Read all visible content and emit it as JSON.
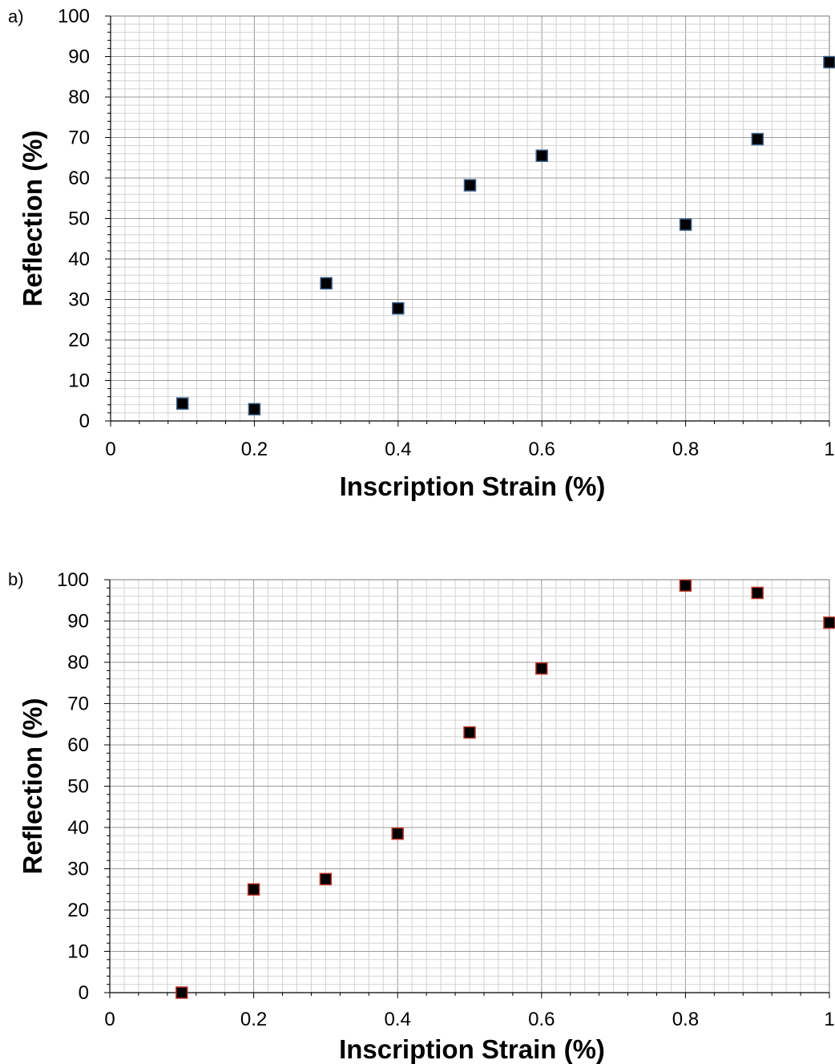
{
  "chart_data": [
    {
      "type": "scatter",
      "panel_label": "a)",
      "xlabel": "Inscription Strain (%)",
      "ylabel": "Reflection (%)",
      "xlim": [
        0,
        1
      ],
      "ylim": [
        0,
        100
      ],
      "xticks": [
        "0",
        "0.2",
        "0.4",
        "0.6",
        "0.8",
        "1"
      ],
      "yticks": [
        "0",
        "10",
        "20",
        "30",
        "40",
        "50",
        "60",
        "70",
        "80",
        "90",
        "100"
      ],
      "grid": true,
      "marker": "square",
      "marker_fill": "#000000",
      "marker_edge": "#3b5f8a",
      "x": [
        0.1,
        0.2,
        0.3,
        0.4,
        0.5,
        0.6,
        0.8,
        0.9,
        1.0
      ],
      "y": [
        4.3,
        2.9,
        34.0,
        27.8,
        58.2,
        65.5,
        48.5,
        69.6,
        88.6
      ]
    },
    {
      "type": "scatter",
      "panel_label": "b)",
      "xlabel": "Inscription Strain (%)",
      "ylabel": "Reflection (%)",
      "xlim": [
        0,
        1
      ],
      "ylim": [
        0,
        100
      ],
      "xticks": [
        "0",
        "0.2",
        "0.4",
        "0.6",
        "0.8",
        "1"
      ],
      "yticks": [
        "0",
        "10",
        "20",
        "30",
        "40",
        "50",
        "60",
        "70",
        "80",
        "90",
        "100"
      ],
      "grid": true,
      "marker": "square",
      "marker_fill": "#000000",
      "marker_edge": "#c0392b",
      "x": [
        0.1,
        0.2,
        0.3,
        0.4,
        0.5,
        0.6,
        0.8,
        0.9,
        1.0
      ],
      "y": [
        0.0,
        25.0,
        27.5,
        38.5,
        63.0,
        78.5,
        98.6,
        96.8,
        89.6
      ]
    }
  ]
}
